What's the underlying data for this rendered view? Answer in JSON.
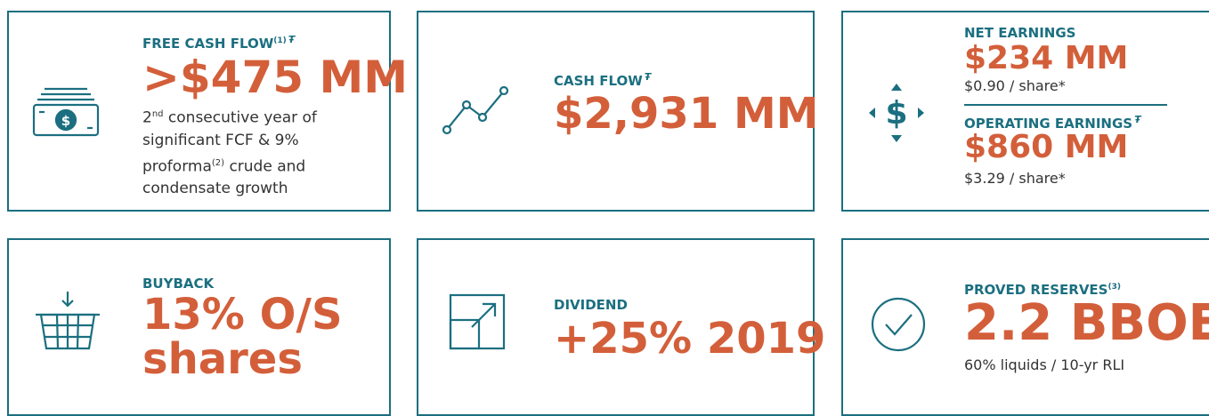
{
  "cards": [
    {
      "title": "FREE CASH FLOW",
      "title_sup": "(1)",
      "title_mark": "Ŧ",
      "value": ">$475 MM",
      "note": [
        "2",
        "nd",
        " consecutive year of significant FCF & 9% proforma",
        "(2)",
        " crude and condensate growth"
      ]
    },
    {
      "title": "CASH FLOW",
      "title_mark": "Ŧ",
      "value": "$2,931 MM"
    },
    {
      "items": [
        {
          "title": "NET EARNINGS",
          "value": "$234 MM",
          "note": "$0.90 / share*"
        },
        {
          "title": "OPERATING EARNINGS",
          "title_mark": "Ŧ",
          "value": "$860 MM",
          "note": "$3.29 / share*"
        }
      ]
    },
    {
      "title": "BUYBACK",
      "value_lines": [
        "13% O/S",
        "shares"
      ]
    },
    {
      "title": "DIVIDEND",
      "value": "+25% 2019"
    },
    {
      "title": "PROVED RESERVES",
      "title_sup": "(3)",
      "value": "2.2 BBOE",
      "note": "60% liquids / 10-yr RLI"
    }
  ]
}
